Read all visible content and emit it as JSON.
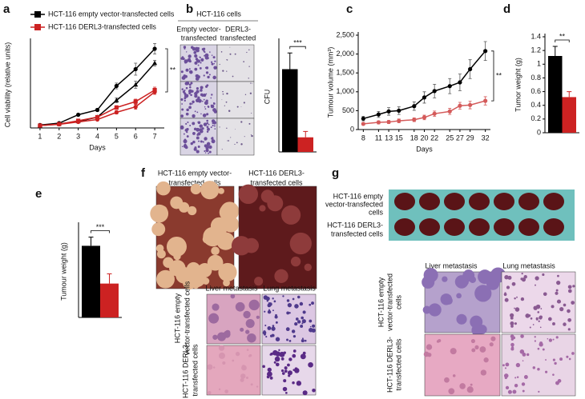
{
  "panel_labels": [
    "a",
    "b",
    "c",
    "d",
    "e",
    "f",
    "g"
  ],
  "chart_data": [
    {
      "type": "line",
      "x_label": "Days",
      "y_label": "Cell viability (relative units)",
      "x": [
        1,
        2,
        3,
        4,
        5,
        6,
        7
      ],
      "xlim": [
        0.5,
        7.5
      ],
      "xticks": [
        1,
        2,
        3,
        4,
        5,
        6,
        7
      ],
      "ylim": [
        0,
        3.6
      ],
      "annotation": "**",
      "series": [
        {
          "name": "HCT-116 empty vector-transfected cells",
          "color": "#000000",
          "marker": "circle",
          "values": [
            0.12,
            0.2,
            0.55,
            0.75,
            1.75,
            2.45,
            3.3
          ],
          "errors": [
            0.02,
            0.03,
            0.04,
            0.06,
            0.12,
            0.25,
            0.22
          ]
        },
        {
          "color": "#000000",
          "marker": "triangle",
          "values": [
            0.1,
            0.17,
            0.27,
            0.45,
            1.15,
            1.8,
            2.7
          ],
          "errors": [
            0.02,
            0.02,
            0.03,
            0.05,
            0.1,
            0.15,
            0.12
          ]
        },
        {
          "name": "HCT-116 DERL3-transfected cells",
          "color": "#cc2222",
          "marker": "square",
          "values": [
            0.1,
            0.16,
            0.3,
            0.45,
            0.85,
            1.1,
            1.58
          ],
          "errors": [
            0.02,
            0.02,
            0.03,
            0.05,
            0.08,
            0.1,
            0.12
          ]
        },
        {
          "color": "#cc2222",
          "marker": "circle",
          "values": [
            0.1,
            0.15,
            0.25,
            0.35,
            0.65,
            0.88,
            1.5
          ],
          "errors": [
            0.02,
            0.02,
            0.03,
            0.04,
            0.07,
            0.1,
            0.1
          ]
        }
      ]
    },
    {
      "type": "bar",
      "y_label": "CFU",
      "categories": [
        null,
        null
      ],
      "values": [
        255,
        45
      ],
      "errors": [
        50,
        18
      ],
      "colors": [
        "#000000",
        "#cc2222"
      ],
      "ylim": [
        0,
        340
      ],
      "annotation": "***"
    },
    {
      "type": "line",
      "x_label": "Days",
      "y_label": "Tumour volume (mm³)",
      "x": [
        8,
        11,
        13,
        15,
        18,
        20,
        22,
        25,
        27,
        29,
        32
      ],
      "xlim": [
        7,
        33
      ],
      "xticks": [
        8,
        11,
        13,
        15,
        18,
        20,
        22,
        25,
        27,
        29,
        32
      ],
      "ylim": [
        0,
        2500
      ],
      "yticks": [
        0,
        500,
        {
          "value": 1000,
          "label": "1,000"
        },
        {
          "value": 1500,
          "label": "1,500"
        },
        {
          "value": 2000,
          "label": "2,000"
        },
        {
          "value": 2500,
          "label": "2,500"
        }
      ],
      "annotation": "**",
      "series": [
        {
          "color": "#000000",
          "marker": "circle",
          "values": [
            290,
            400,
            480,
            500,
            620,
            850,
            1020,
            1150,
            1250,
            1600,
            2080
          ],
          "errors": [
            60,
            80,
            100,
            100,
            110,
            150,
            180,
            200,
            220,
            250,
            250
          ]
        },
        {
          "color": "#d45a5a",
          "marker": "circle",
          "values": [
            150,
            190,
            200,
            230,
            260,
            320,
            420,
            480,
            630,
            650,
            760
          ],
          "errors": [
            30,
            40,
            40,
            50,
            50,
            60,
            70,
            80,
            90,
            100,
            110
          ]
        }
      ]
    },
    {
      "type": "bar",
      "y_label": "Tumor weight (g)",
      "categories": [
        null,
        null
      ],
      "values": [
        1.12,
        0.52
      ],
      "errors": [
        0.14,
        0.08
      ],
      "colors": [
        "#000000",
        "#cc2222"
      ],
      "ylim": [
        0,
        1.4
      ],
      "yticks": [
        0,
        0.2,
        0.4,
        0.6,
        0.8,
        1,
        1.2,
        1.4
      ],
      "annotation": "**"
    },
    {
      "type": "bar",
      "y_label": "Tumour weight (g)",
      "categories": [
        null,
        null
      ],
      "values": [
        1.48,
        0.7
      ],
      "errors": [
        0.18,
        0.2
      ],
      "colors": [
        "#000000",
        "#cc2222"
      ],
      "ylim": [
        0,
        1.9
      ],
      "annotation": "***"
    }
  ],
  "panel_b": {
    "title": "HCT-116 cells",
    "columns": [
      [
        "Empty vector-",
        "transfected"
      ],
      [
        "DERL3-",
        "transfected"
      ]
    ]
  },
  "panel_f": {
    "columns": [
      [
        "HCT-116 empty vector-",
        "transfected cells"
      ],
      [
        "HCT-116 DERL3-",
        "transfected cells"
      ]
    ],
    "histology_columns": [
      "Liver metastasis",
      "Lung metastasis"
    ],
    "histology_rows": [
      [
        "HCT-116 empty",
        "vector-transfected cells"
      ],
      [
        "HCT-116 DERL3-",
        "transfected cells"
      ]
    ]
  },
  "panel_g": {
    "rows": [
      [
        "HCT-116 empty",
        "vector-transfected",
        "cells"
      ],
      [
        "HCT-116 DERL3-",
        "transfected cells"
      ]
    ],
    "histology_columns": [
      "Liver metastasis",
      "Lung metastasis"
    ],
    "histology_rows": [
      [
        "HCT-116 empty",
        "vector-transfected",
        "cells"
      ],
      [
        "HCT-116 DERL3-",
        "transfected cells"
      ]
    ]
  }
}
